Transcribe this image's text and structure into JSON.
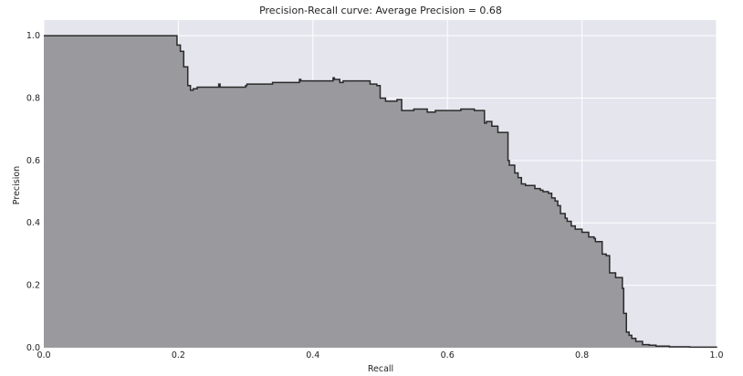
{
  "chart_data": {
    "type": "area",
    "title": "Precision-Recall curve: Average Precision = 0.68",
    "xlabel": "Recall",
    "ylabel": "Precision",
    "xlim": [
      0.0,
      1.0
    ],
    "ylim": [
      0.0,
      1.05
    ],
    "x_ticks": [
      0.0,
      0.2,
      0.4,
      0.6,
      0.8,
      1.0
    ],
    "x_tick_labels": [
      "0.0",
      "0.2",
      "0.4",
      "0.6",
      "0.8",
      "1.0"
    ],
    "y_ticks": [
      0.0,
      0.2,
      0.4,
      0.6,
      0.8,
      1.0
    ],
    "y_tick_labels": [
      "0.0",
      "0.2",
      "0.4",
      "0.6",
      "0.8",
      "1.0"
    ],
    "grid": true,
    "colors": {
      "background": "#e5e5ee",
      "grid": "#ffffff",
      "fill": "#9a999e",
      "line": "#2a2a2a"
    },
    "series": [
      {
        "step": "post",
        "recall": [
          0.0,
          0.198,
          0.203,
          0.208,
          0.214,
          0.218,
          0.222,
          0.228,
          0.26,
          0.262,
          0.3,
          0.302,
          0.34,
          0.38,
          0.382,
          0.43,
          0.432,
          0.44,
          0.445,
          0.48,
          0.485,
          0.495,
          0.5,
          0.508,
          0.525,
          0.532,
          0.55,
          0.57,
          0.582,
          0.62,
          0.64,
          0.655,
          0.658,
          0.666,
          0.675,
          0.69,
          0.692,
          0.7,
          0.705,
          0.71,
          0.716,
          0.73,
          0.738,
          0.742,
          0.75,
          0.755,
          0.76,
          0.764,
          0.768,
          0.775,
          0.778,
          0.784,
          0.79,
          0.8,
          0.81,
          0.818,
          0.82,
          0.83,
          0.836,
          0.841,
          0.85,
          0.86,
          0.862,
          0.866,
          0.87,
          0.874,
          0.88,
          0.89,
          0.9,
          0.91,
          0.93,
          0.96,
          1.0
        ],
        "precision": [
          1.0,
          0.97,
          0.95,
          0.9,
          0.84,
          0.825,
          0.83,
          0.835,
          0.845,
          0.835,
          0.84,
          0.845,
          0.85,
          0.86,
          0.855,
          0.865,
          0.86,
          0.85,
          0.855,
          0.855,
          0.845,
          0.84,
          0.8,
          0.79,
          0.795,
          0.76,
          0.765,
          0.755,
          0.76,
          0.765,
          0.76,
          0.72,
          0.725,
          0.71,
          0.69,
          0.6,
          0.585,
          0.56,
          0.545,
          0.525,
          0.52,
          0.51,
          0.505,
          0.5,
          0.495,
          0.48,
          0.47,
          0.455,
          0.43,
          0.415,
          0.405,
          0.39,
          0.38,
          0.37,
          0.355,
          0.35,
          0.34,
          0.3,
          0.295,
          0.24,
          0.225,
          0.19,
          0.11,
          0.05,
          0.04,
          0.03,
          0.02,
          0.01,
          0.008,
          0.005,
          0.003,
          0.002,
          0.0
        ]
      }
    ]
  }
}
